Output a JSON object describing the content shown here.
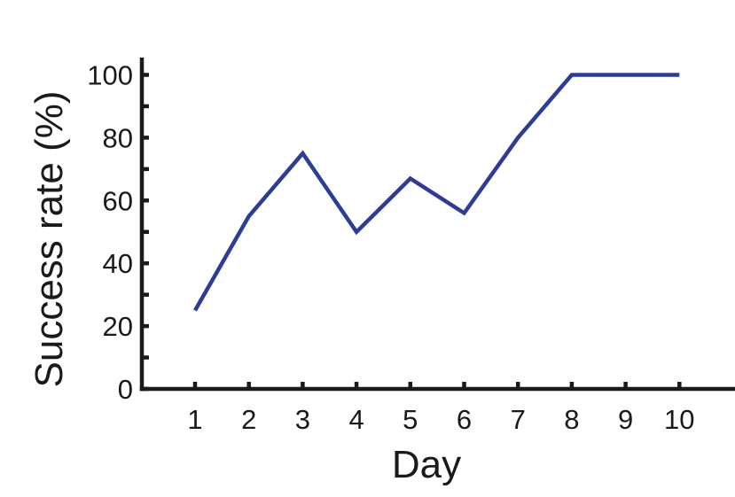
{
  "chart_data": {
    "type": "line",
    "xlabel": "Day",
    "ylabel": "Success rate (%)",
    "x": [
      1,
      2,
      3,
      4,
      5,
      6,
      7,
      8,
      9,
      10
    ],
    "x_tick_labels": [
      "1",
      "2",
      "3",
      "4",
      "5",
      "6",
      "7",
      "8",
      "9",
      "10"
    ],
    "y_tick_labels": [
      "0",
      "20",
      "40",
      "60",
      "80",
      "100"
    ],
    "ylim": [
      0,
      100
    ],
    "y_ticks": [
      0,
      20,
      40,
      60,
      80,
      100
    ],
    "y_minor_ticks": [
      10,
      30,
      50,
      70,
      90
    ],
    "grid": false,
    "series": [
      {
        "color": "#2e3d94",
        "x": [
          1,
          2,
          3,
          4,
          5,
          6,
          7,
          8,
          9,
          10
        ],
        "values": [
          25,
          55,
          75,
          50,
          67,
          56,
          80,
          100,
          100,
          100
        ]
      }
    ]
  }
}
